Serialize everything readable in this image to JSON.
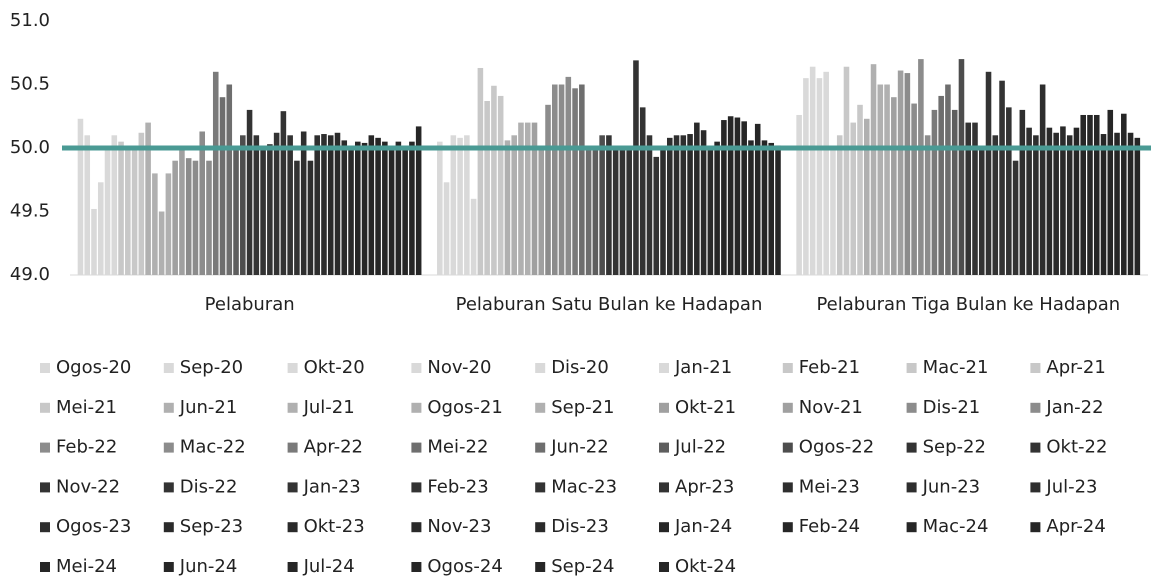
{
  "chart_data": {
    "type": "bar",
    "categories": [
      "Pelaburan",
      "Pelaburan Satu Bulan ke Hadapan",
      "Pelaburan Tiga Bulan ke Hadapan"
    ],
    "ylim": [
      49,
      51
    ],
    "yticks": [
      {
        "value": 49,
        "label": "49.0"
      },
      {
        "value": 49.5,
        "label": "49.5"
      },
      {
        "value": 50,
        "label": "50.0"
      },
      {
        "value": 50.5,
        "label": "50.5"
      },
      {
        "value": 51,
        "label": "51.0"
      }
    ],
    "reference_line": {
      "value": 50,
      "color": "#4a9a94"
    },
    "legend": "bottom",
    "series": [
      {
        "name": "Ogos-20",
        "color": "#d9d9d9",
        "values": [
          50.23,
          50.05,
          50.26
        ]
      },
      {
        "name": "Sep-20",
        "color": "#d9d9d9",
        "values": [
          50.1,
          49.73,
          50.55
        ]
      },
      {
        "name": "Okt-20",
        "color": "#d9d9d9",
        "values": [
          49.52,
          50.1,
          50.64
        ]
      },
      {
        "name": "Nov-20",
        "color": "#d9d9d9",
        "values": [
          49.73,
          50.08,
          50.55
        ]
      },
      {
        "name": "Dis-20",
        "color": "#d9d9d9",
        "values": [
          50.0,
          50.1,
          50.6
        ]
      },
      {
        "name": "Jan-21",
        "color": "#d9d9d9",
        "values": [
          50.1,
          49.6,
          50.0
        ]
      },
      {
        "name": "Feb-21",
        "color": "#c8c8c8",
        "values": [
          50.05,
          50.63,
          50.1
        ]
      },
      {
        "name": "Mac-21",
        "color": "#c8c8c8",
        "values": [
          50.0,
          50.37,
          50.64
        ]
      },
      {
        "name": "Apr-21",
        "color": "#c8c8c8",
        "values": [
          50.0,
          50.49,
          50.2
        ]
      },
      {
        "name": "Mei-21",
        "color": "#c8c8c8",
        "values": [
          50.12,
          50.41,
          50.34
        ]
      },
      {
        "name": "Jun-21",
        "color": "#b0b0b0",
        "values": [
          50.2,
          50.06,
          50.23
        ]
      },
      {
        "name": "Jul-21",
        "color": "#b0b0b0",
        "values": [
          49.8,
          50.1,
          50.66
        ]
      },
      {
        "name": "Ogos-21",
        "color": "#b0b0b0",
        "values": [
          49.5,
          50.2,
          50.5
        ]
      },
      {
        "name": "Sep-21",
        "color": "#b0b0b0",
        "values": [
          49.8,
          50.2,
          50.5
        ]
      },
      {
        "name": "Okt-21",
        "color": "#a0a0a0",
        "values": [
          49.9,
          50.2,
          50.4
        ]
      },
      {
        "name": "Nov-21",
        "color": "#a0a0a0",
        "values": [
          50.0,
          50.0,
          50.61
        ]
      },
      {
        "name": "Dis-21",
        "color": "#8c8c8c",
        "values": [
          49.92,
          50.34,
          50.59
        ]
      },
      {
        "name": "Jan-22",
        "color": "#8c8c8c",
        "values": [
          49.9,
          50.5,
          50.35
        ]
      },
      {
        "name": "Feb-22",
        "color": "#8c8c8c",
        "values": [
          50.13,
          50.5,
          50.7
        ]
      },
      {
        "name": "Mac-22",
        "color": "#8c8c8c",
        "values": [
          49.9,
          50.56,
          50.1
        ]
      },
      {
        "name": "Apr-22",
        "color": "#7a7a7a",
        "values": [
          50.6,
          50.47,
          50.3
        ]
      },
      {
        "name": "Mei-22",
        "color": "#6e6e6e",
        "values": [
          50.4,
          50.5,
          50.41
        ]
      },
      {
        "name": "Jun-22",
        "color": "#6e6e6e",
        "values": [
          50.5,
          50.0,
          50.5
        ]
      },
      {
        "name": "Jul-22",
        "color": "#5e5e5e",
        "values": [
          50.0,
          50.0,
          50.3
        ]
      },
      {
        "name": "Ogos-22",
        "color": "#4d4d4d",
        "values": [
          50.1,
          50.1,
          50.7
        ]
      },
      {
        "name": "Sep-22",
        "color": "#333333",
        "values": [
          50.3,
          50.1,
          50.2
        ]
      },
      {
        "name": "Okt-22",
        "color": "#333333",
        "values": [
          50.1,
          50.0,
          50.2
        ]
      },
      {
        "name": "Nov-22",
        "color": "#333333",
        "values": [
          50.0,
          50.0,
          50.0
        ]
      },
      {
        "name": "Dis-22",
        "color": "#333333",
        "values": [
          50.03,
          50.0,
          50.6
        ]
      },
      {
        "name": "Jan-23",
        "color": "#333333",
        "values": [
          50.12,
          50.69,
          50.1
        ]
      },
      {
        "name": "Feb-23",
        "color": "#333333",
        "values": [
          50.29,
          50.32,
          50.53
        ]
      },
      {
        "name": "Mac-23",
        "color": "#333333",
        "values": [
          50.1,
          50.1,
          50.32
        ]
      },
      {
        "name": "Apr-23",
        "color": "#333333",
        "values": [
          49.9,
          49.93,
          49.9
        ]
      },
      {
        "name": "Mei-23",
        "color": "#2e2e2e",
        "values": [
          50.13,
          50.0,
          50.3
        ]
      },
      {
        "name": "Jun-23",
        "color": "#2e2e2e",
        "values": [
          49.9,
          50.08,
          50.16
        ]
      },
      {
        "name": "Jul-23",
        "color": "#2e2e2e",
        "values": [
          50.1,
          50.1,
          50.1
        ]
      },
      {
        "name": "Ogos-23",
        "color": "#2e2e2e",
        "values": [
          50.11,
          50.1,
          50.5
        ]
      },
      {
        "name": "Sep-23",
        "color": "#2a2a2a",
        "values": [
          50.1,
          50.11,
          50.16
        ]
      },
      {
        "name": "Okt-23",
        "color": "#2a2a2a",
        "values": [
          50.12,
          50.2,
          50.12
        ]
      },
      {
        "name": "Nov-23",
        "color": "#2a2a2a",
        "values": [
          50.06,
          50.14,
          50.17
        ]
      },
      {
        "name": "Dis-23",
        "color": "#2a2a2a",
        "values": [
          50.0,
          50.0,
          50.1
        ]
      },
      {
        "name": "Jan-24",
        "color": "#262626",
        "values": [
          50.05,
          50.05,
          50.16
        ]
      },
      {
        "name": "Feb-24",
        "color": "#262626",
        "values": [
          50.04,
          50.22,
          50.26
        ]
      },
      {
        "name": "Mac-24",
        "color": "#262626",
        "values": [
          50.1,
          50.25,
          50.26
        ]
      },
      {
        "name": "Apr-24",
        "color": "#262626",
        "values": [
          50.08,
          50.24,
          50.26
        ]
      },
      {
        "name": "Mei-24",
        "color": "#262626",
        "values": [
          50.05,
          50.21,
          50.11
        ]
      },
      {
        "name": "Jun-24",
        "color": "#262626",
        "values": [
          50.0,
          50.06,
          50.3
        ]
      },
      {
        "name": "Jul-24",
        "color": "#262626",
        "values": [
          50.05,
          50.19,
          50.12
        ]
      },
      {
        "name": "Ogos-24",
        "color": "#262626",
        "values": [
          50.0,
          50.06,
          50.27
        ]
      },
      {
        "name": "Sep-24",
        "color": "#262626",
        "values": [
          50.05,
          50.04,
          50.12
        ]
      },
      {
        "name": "Okt-24",
        "color": "#262626",
        "values": [
          50.17,
          50.02,
          50.08
        ]
      }
    ]
  }
}
